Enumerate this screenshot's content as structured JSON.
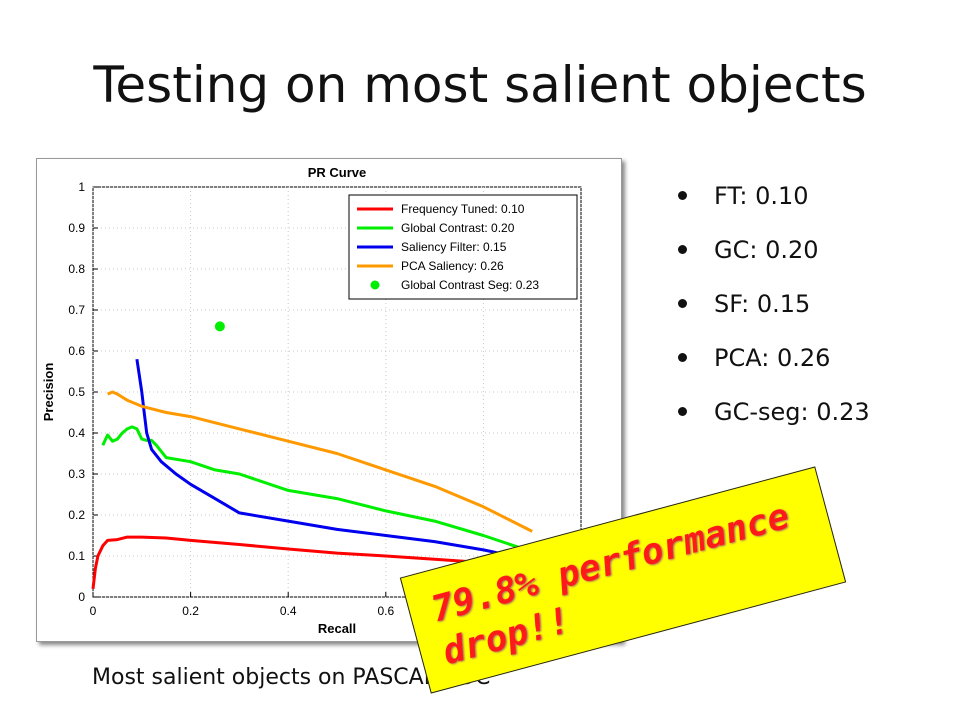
{
  "slide": {
    "title": "Testing on most salient objects",
    "caption": "Most salient objects on PASCAL VOC",
    "bullets": [
      "FT: 0.10",
      "GC: 0.20",
      "SF: 0.15",
      "PCA: 0.26",
      "GC-seg: 0.23"
    ],
    "callout": {
      "line1": "79.8% performance",
      "line2": "drop!!",
      "background": "#ffff00",
      "text_color": "#ff1a1a"
    }
  },
  "chart_data": {
    "type": "line",
    "title": "PR Curve",
    "xlabel": "Recall",
    "ylabel": "Precision",
    "xlim": [
      0,
      1
    ],
    "ylim": [
      0,
      1
    ],
    "xticks": [
      "0",
      "0.2",
      "0.4",
      "0.6"
    ],
    "yticks": [
      "0",
      "0.1",
      "0.2",
      "0.3",
      "0.4",
      "0.5",
      "0.6",
      "0.7",
      "0.8",
      "0.9",
      "1"
    ],
    "grid": true,
    "legend_position": "top-right",
    "series": [
      {
        "name": "Frequency Tuned: 0.10",
        "color": "#ff0000",
        "x": [
          0.0,
          0.005,
          0.01,
          0.02,
          0.03,
          0.05,
          0.07,
          0.1,
          0.15,
          0.2,
          0.3,
          0.4,
          0.5,
          0.6,
          0.7,
          0.8,
          0.9
        ],
        "y": [
          0.02,
          0.07,
          0.1,
          0.125,
          0.138,
          0.14,
          0.146,
          0.146,
          0.144,
          0.138,
          0.128,
          0.117,
          0.107,
          0.1,
          0.092,
          0.084,
          0.072
        ]
      },
      {
        "name": "Global Contrast: 0.20",
        "color": "#00ee00",
        "x": [
          0.02,
          0.03,
          0.04,
          0.05,
          0.06,
          0.07,
          0.08,
          0.09,
          0.1,
          0.11,
          0.12,
          0.13,
          0.15,
          0.2,
          0.25,
          0.3,
          0.4,
          0.5,
          0.6,
          0.7,
          0.8,
          0.9
        ],
        "y": [
          0.37,
          0.395,
          0.38,
          0.385,
          0.4,
          0.41,
          0.415,
          0.41,
          0.385,
          0.382,
          0.382,
          0.37,
          0.34,
          0.33,
          0.31,
          0.3,
          0.26,
          0.24,
          0.21,
          0.185,
          0.15,
          0.11
        ]
      },
      {
        "name": "Saliency Filter: 0.15",
        "color": "#0000ee",
        "x": [
          0.09,
          0.1,
          0.105,
          0.11,
          0.12,
          0.14,
          0.17,
          0.2,
          0.25,
          0.3,
          0.4,
          0.5,
          0.6,
          0.7,
          0.8,
          0.9
        ],
        "y": [
          0.58,
          0.5,
          0.45,
          0.4,
          0.36,
          0.33,
          0.3,
          0.275,
          0.24,
          0.205,
          0.185,
          0.165,
          0.15,
          0.135,
          0.115,
          0.09
        ]
      },
      {
        "name": "PCA Saliency: 0.26",
        "color": "#ff9900",
        "x": [
          0.03,
          0.04,
          0.05,
          0.07,
          0.1,
          0.15,
          0.2,
          0.3,
          0.4,
          0.5,
          0.6,
          0.7,
          0.8,
          0.9
        ],
        "y": [
          0.495,
          0.5,
          0.495,
          0.48,
          0.465,
          0.45,
          0.44,
          0.41,
          0.38,
          0.35,
          0.31,
          0.27,
          0.22,
          0.16
        ]
      }
    ],
    "points": [
      {
        "name": "Global Contrast Seg: 0.23",
        "color": "#00ee00",
        "x": 0.26,
        "y": 0.66
      }
    ]
  }
}
